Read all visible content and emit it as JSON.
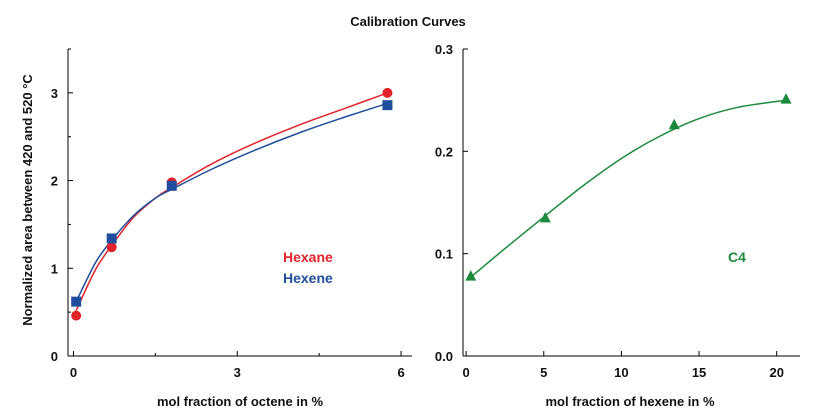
{
  "figure_title": "Calibration Curves",
  "chart_data": [
    {
      "type": "scatter",
      "xlabel": "mol fraction of octene in %",
      "ylabel": "Normalized area between 420 and 520 °C",
      "xlim": [
        -0.1,
        6.2
      ],
      "ylim": [
        0,
        3.5
      ],
      "xticks": [
        0,
        3,
        6
      ],
      "xminor": [
        1.5,
        4.5
      ],
      "yticks": [
        0,
        1,
        2,
        3
      ],
      "yminor": [
        0.5,
        1.5,
        2.5,
        3.5
      ],
      "series": [
        {
          "name": "Hexane",
          "color": "#e0232a",
          "marker": "circle",
          "x": [
            0.05,
            0.7,
            1.8,
            5.75
          ],
          "y": [
            0.46,
            1.24,
            1.98,
            3.0
          ],
          "fit": {
            "x": [
              0.05,
              0.4,
              0.7,
              1.1,
              1.5,
              1.8,
              2.5,
              3.3,
              4.2,
              5.0,
              5.75
            ],
            "y": [
              0.52,
              0.98,
              1.26,
              1.58,
              1.8,
              1.92,
              2.18,
              2.42,
              2.65,
              2.83,
              3.0
            ]
          }
        },
        {
          "name": "Hexene",
          "color": "#1f4e9c",
          "marker": "square",
          "x": [
            0.05,
            0.7,
            1.8,
            5.75
          ],
          "y": [
            0.62,
            1.34,
            1.94,
            2.86
          ],
          "fit": {
            "x": [
              0.05,
              0.4,
              0.7,
              1.1,
              1.5,
              1.8,
              2.5,
              3.3,
              4.2,
              5.0,
              5.75
            ],
            "y": [
              0.62,
              1.06,
              1.32,
              1.6,
              1.8,
              1.9,
              2.12,
              2.34,
              2.56,
              2.73,
              2.88
            ]
          }
        }
      ]
    },
    {
      "type": "scatter",
      "xlabel": "mol fraction of hexene in %",
      "ylabel": "",
      "xlim": [
        -0.2,
        21.5
      ],
      "ylim": [
        0,
        0.3
      ],
      "xticks": [
        0,
        5,
        10,
        15,
        20
      ],
      "yticks": [
        0.0,
        0.1,
        0.2,
        0.3
      ],
      "ytick_labels": [
        "0.0",
        "0.1",
        "0.2",
        "0.3"
      ],
      "series": [
        {
          "name": "C4",
          "color": "#1c8a3c",
          "marker": "triangle",
          "x": [
            0.3,
            5.1,
            13.4,
            20.6
          ],
          "y": [
            0.078,
            0.135,
            0.226,
            0.251
          ],
          "fit": {
            "x": [
              0.3,
              2.5,
              5.1,
              7.5,
              10.0,
              12.5,
              15.0,
              17.5,
              20.6
            ],
            "y": [
              0.077,
              0.105,
              0.137,
              0.166,
              0.193,
              0.215,
              0.232,
              0.243,
              0.25
            ]
          }
        }
      ]
    }
  ]
}
